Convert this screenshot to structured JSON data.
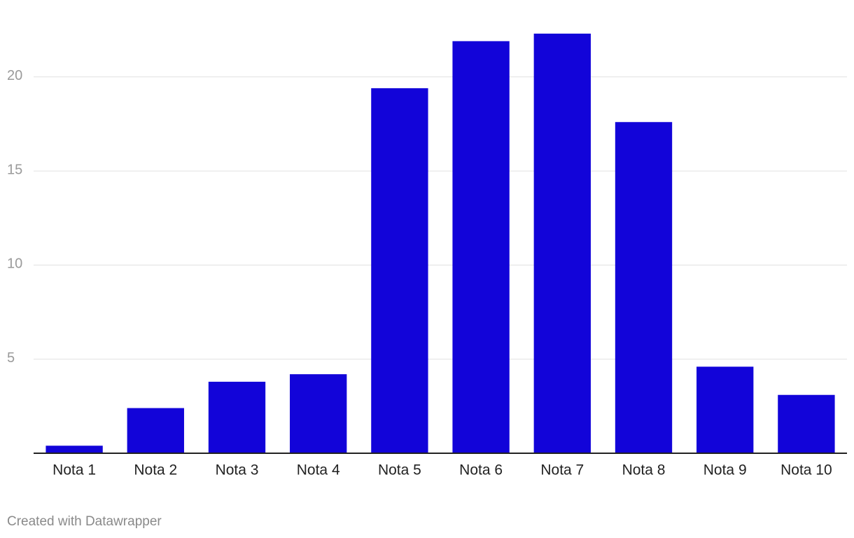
{
  "chart_data": {
    "type": "bar",
    "categories": [
      "Nota 1",
      "Nota 2",
      "Nota 3",
      "Nota 4",
      "Nota 5",
      "Nota 6",
      "Nota 7",
      "Nota 8",
      "Nota 9",
      "Nota 10"
    ],
    "values": [
      0.4,
      2.4,
      3.8,
      4.2,
      19.4,
      21.9,
      22.3,
      17.6,
      4.6,
      3.1
    ],
    "color": "#1204d9",
    "ylim": [
      0,
      22.3
    ],
    "yticks": [
      5,
      10,
      15,
      20
    ],
    "grid": true,
    "credit": "Created with Datawrapper"
  }
}
